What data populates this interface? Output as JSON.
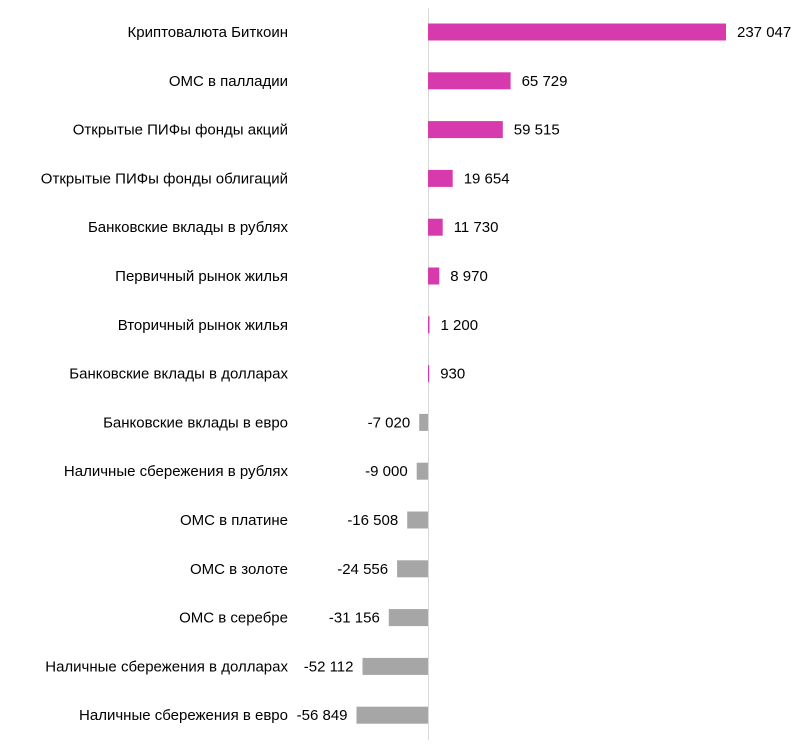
{
  "chart_data": {
    "type": "bar",
    "orientation": "horizontal",
    "title": "",
    "xlabel": "",
    "ylabel": "",
    "grid": false,
    "legend": "none",
    "categories": [
      "Криптовалюта Биткоин",
      "ОМС в палладии",
      "Открытые ПИФы фонды акций",
      "Открытые ПИФы фонды облигаций",
      "Банковские вклады в рублях",
      "Первичный рынок жилья",
      "Вторичный рынок жилья",
      "Банковские вклады в долларах",
      "Банковские вклады в евро",
      "Наличные сбережения в рублях",
      "ОМС в платине",
      "ОМС в золоте",
      "ОМС в серебре",
      "Наличные сбережения в долларах",
      "Наличные сбережения в евро"
    ],
    "values": [
      237047,
      65729,
      59515,
      19654,
      11730,
      8970,
      1200,
      930,
      -7020,
      -9000,
      -16508,
      -24556,
      -31156,
      -52112,
      -56849
    ],
    "value_labels": [
      "237 047",
      "65 729",
      "59 515",
      "19 654",
      "11 730",
      "8 970",
      "1 200",
      "930",
      "-7 020",
      "-9 000",
      "-16 508",
      "-24 556",
      "-31 156",
      "-52 112",
      "-56 849"
    ],
    "colors": {
      "positive": "#d63aad",
      "negative": "#a6a6a6",
      "axis": "#d9d9d9"
    }
  }
}
